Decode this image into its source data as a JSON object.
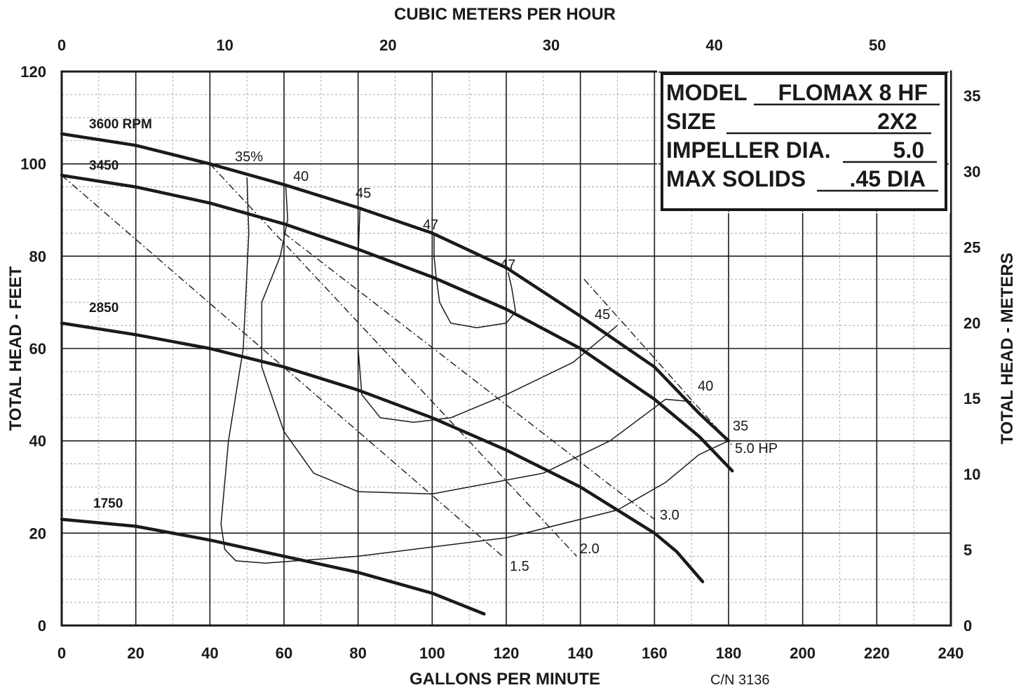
{
  "chart_data": {
    "type": "line",
    "title": "",
    "xlabel": "GALLONS PER MINUTE",
    "ylabel": "TOTAL HEAD - FEET",
    "x2label": "CUBIC METERS PER HOUR",
    "y2label": "TOTAL HEAD - METERS",
    "xlim": [
      0,
      240
    ],
    "ylim": [
      0,
      120
    ],
    "x2lim": [
      0,
      54.5
    ],
    "y2lim": [
      0,
      36.6
    ],
    "x_ticks": [
      "0",
      "20",
      "40",
      "60",
      "80",
      "100",
      "120",
      "140",
      "160",
      "180",
      "200",
      "220",
      "240"
    ],
    "y_ticks": [
      "0",
      "20",
      "40",
      "60",
      "80",
      "100",
      "120"
    ],
    "x2_ticks": [
      "0",
      "10",
      "20",
      "30",
      "40",
      "50"
    ],
    "y2_ticks": [
      "0",
      "5",
      "10",
      "15",
      "20",
      "25",
      "30",
      "35"
    ],
    "grid": true,
    "model_box": {
      "rows": [
        {
          "label": "MODEL",
          "value": "FLOMAX 8 HF"
        },
        {
          "label": "SIZE",
          "value": "2X2"
        },
        {
          "label": "IMPELLER DIA.",
          "value": "5.0"
        },
        {
          "label": "MAX SOLIDS",
          "value": ".45 DIA"
        }
      ]
    },
    "catalog_number": "C/N 3136",
    "series": [
      {
        "name": "3600 RPM",
        "kind": "head",
        "points": [
          [
            0,
            106.5
          ],
          [
            20,
            104
          ],
          [
            40,
            100
          ],
          [
            60,
            95.5
          ],
          [
            80,
            90.5
          ],
          [
            100,
            85
          ],
          [
            120,
            77.5
          ],
          [
            140,
            67
          ],
          [
            160,
            56
          ],
          [
            172,
            46
          ],
          [
            180,
            40
          ]
        ]
      },
      {
        "name": "3450",
        "kind": "head",
        "points": [
          [
            0,
            97.5
          ],
          [
            20,
            95
          ],
          [
            40,
            91.5
          ],
          [
            60,
            87
          ],
          [
            80,
            81.5
          ],
          [
            100,
            75.5
          ],
          [
            120,
            68.5
          ],
          [
            140,
            60
          ],
          [
            160,
            49
          ],
          [
            172,
            41
          ],
          [
            181,
            33.5
          ]
        ]
      },
      {
        "name": "2850",
        "kind": "head",
        "points": [
          [
            0,
            65.5
          ],
          [
            20,
            63
          ],
          [
            40,
            60
          ],
          [
            60,
            56
          ],
          [
            80,
            51
          ],
          [
            100,
            45
          ],
          [
            120,
            38
          ],
          [
            140,
            30
          ],
          [
            160,
            20
          ],
          [
            166,
            16
          ],
          [
            173,
            9.5
          ]
        ]
      },
      {
        "name": "1750",
        "kind": "head",
        "points": [
          [
            0,
            23
          ],
          [
            20,
            21.5
          ],
          [
            40,
            18.5
          ],
          [
            60,
            15
          ],
          [
            80,
            11.5
          ],
          [
            100,
            7
          ],
          [
            114,
            2.5
          ]
        ]
      }
    ],
    "efficiency_curves": [
      {
        "label": "35%",
        "points": [
          [
            50,
            97
          ],
          [
            50.5,
            85
          ],
          [
            49,
            60
          ],
          [
            45,
            40
          ],
          [
            43,
            22
          ],
          [
            44,
            16.5
          ],
          [
            47,
            14
          ],
          [
            55,
            13.5
          ],
          [
            80,
            15
          ],
          [
            120,
            19
          ],
          [
            150,
            25
          ],
          [
            163,
            31
          ],
          [
            172,
            37
          ],
          [
            180,
            40
          ]
        ]
      },
      {
        "label": "40",
        "points": [
          [
            60.5,
            95
          ],
          [
            61,
            88
          ],
          [
            59,
            80
          ],
          [
            54,
            70
          ],
          [
            54,
            56
          ],
          [
            60,
            42
          ],
          [
            68,
            33
          ],
          [
            80,
            29
          ],
          [
            100,
            28.5
          ],
          [
            130,
            33
          ],
          [
            148,
            40
          ],
          [
            158,
            46
          ],
          [
            163,
            49
          ],
          [
            170,
            48.5
          ]
        ]
      },
      {
        "label": "45",
        "points": [
          [
            80.5,
            90
          ],
          [
            80,
            80
          ],
          [
            80,
            70
          ],
          [
            80,
            60
          ],
          [
            81,
            50
          ],
          [
            86,
            45
          ],
          [
            95,
            44
          ],
          [
            105,
            45
          ],
          [
            120,
            50
          ],
          [
            138,
            57
          ],
          [
            150,
            65
          ]
        ]
      },
      {
        "label": "47",
        "points": [
          [
            100.5,
            85
          ],
          [
            100.5,
            80
          ],
          [
            101,
            76
          ],
          [
            102,
            70
          ],
          [
            105,
            65.5
          ],
          [
            112,
            64.5
          ],
          [
            120,
            65.5
          ],
          [
            122.5,
            68
          ],
          [
            121.5,
            73
          ],
          [
            120.5,
            76.5
          ]
        ]
      }
    ],
    "efficiency_labels": [
      "35%",
      "40",
      "45",
      "47",
      "47",
      "45",
      "40",
      "35"
    ],
    "hp_lines": [
      {
        "label": "1.5",
        "points": [
          [
            0,
            97.5
          ],
          [
            119,
            15
          ]
        ]
      },
      {
        "label": "2.0",
        "points": [
          [
            40,
            100
          ],
          [
            139,
            15
          ]
        ]
      },
      {
        "label": "3.0",
        "points": [
          [
            60,
            85
          ],
          [
            160,
            23
          ]
        ]
      },
      {
        "label": "5.0 HP",
        "points": [
          [
            141,
            75
          ],
          [
            181,
            39
          ]
        ]
      }
    ]
  }
}
